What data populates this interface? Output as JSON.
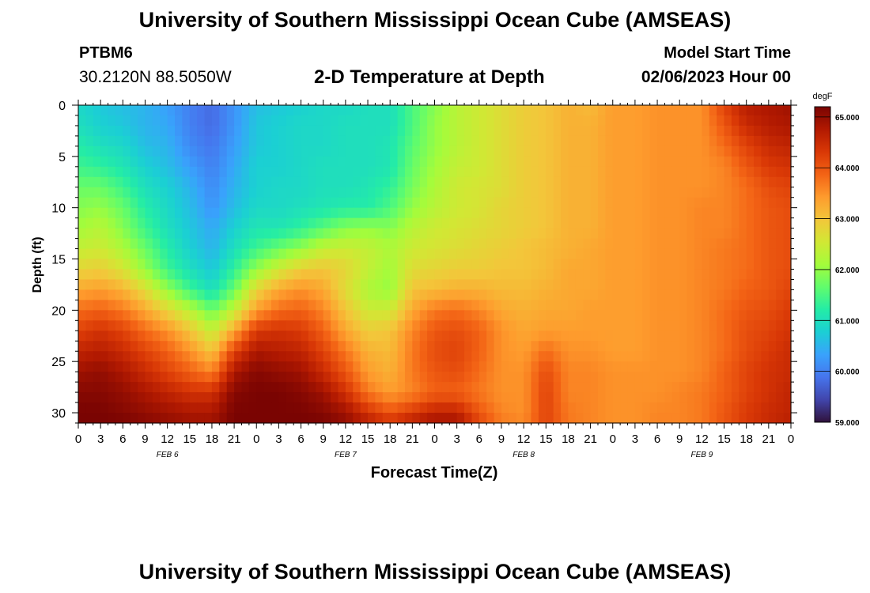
{
  "header": {
    "title": "University of Southern Mississippi Ocean Cube (AMSEAS)",
    "station_id": "PTBM6",
    "station_location": "30.2120N  88.5050W",
    "plot_title": "2-D Temperature at Depth",
    "model_start_label": "Model Start Time",
    "model_start_value": "02/06/2023 Hour 00"
  },
  "footer": {
    "title": "University of Southern Mississippi Ocean Cube (AMSEAS)"
  },
  "chart_data": {
    "type": "heatmap",
    "title": "2-D Temperature at Depth",
    "xlabel": "Forecast Time(Z)",
    "ylabel": "Depth (ft)",
    "x_hours": [
      0,
      96
    ],
    "xlim": [
      0,
      96
    ],
    "ylim": [
      0,
      31
    ],
    "x_tick_labels": [
      "0",
      "3",
      "6",
      "9",
      "12",
      "15",
      "18",
      "21",
      "0",
      "3",
      "6",
      "9",
      "12",
      "15",
      "18",
      "21",
      "0",
      "3",
      "6",
      "9",
      "12",
      "15",
      "18",
      "21",
      "0",
      "3",
      "6",
      "9",
      "12",
      "15",
      "18",
      "21",
      "0"
    ],
    "y_ticks": [
      0,
      5,
      10,
      15,
      20,
      25,
      30
    ],
    "day_labels": [
      {
        "label": "FEB 6",
        "hour": 12
      },
      {
        "label": "FEB 7",
        "hour": 36
      },
      {
        "label": "FEB 8",
        "hour": 60
      },
      {
        "label": "FEB 9",
        "hour": 84
      }
    ],
    "colorbar": {
      "unit": "degF",
      "range": [
        59.0,
        65.2
      ],
      "ticks": [
        "65.000",
        "64.000",
        "63.000",
        "62.000",
        "61.000",
        "60.000",
        "59.000"
      ],
      "tick_values": [
        65,
        64,
        63,
        62,
        61,
        60,
        59
      ],
      "colors": [
        "#30123b",
        "#4145ab",
        "#4675ed",
        "#39a2fc",
        "#1bcfd4",
        "#24eca6",
        "#61fc6c",
        "#a4fc3b",
        "#d1e834",
        "#f3c63a",
        "#fe9b2d",
        "#f36315",
        "#d93806",
        "#b11901",
        "#7a0402"
      ]
    },
    "depths_ft": [
      0,
      2,
      4,
      6,
      8,
      10,
      12,
      14,
      16,
      18,
      20,
      22,
      24,
      26,
      28,
      30,
      31
    ],
    "hours": [
      0,
      3,
      6,
      9,
      12,
      15,
      18,
      21,
      24,
      27,
      30,
      33,
      36,
      39,
      42,
      45,
      48,
      51,
      54,
      57,
      60,
      63,
      66,
      69,
      72,
      75,
      78,
      81,
      84,
      87,
      90,
      93,
      96
    ],
    "temperature_degF": [
      [
        60.9,
        60.7,
        60.6,
        60.5,
        60.3,
        60.0,
        59.8,
        60.2,
        60.6,
        60.7,
        60.8,
        60.9,
        60.9,
        61.0,
        61.0,
        61.5,
        61.9,
        62.3,
        62.5,
        62.7,
        62.9,
        63.0,
        63.2,
        63.1,
        63.4,
        63.4,
        63.5,
        63.5,
        63.5,
        64.2,
        64.7,
        64.8,
        64.9
      ],
      [
        61.0,
        60.8,
        60.7,
        60.5,
        60.4,
        60.0,
        59.8,
        60.2,
        60.7,
        60.8,
        60.9,
        60.9,
        61.0,
        61.0,
        61.0,
        61.5,
        62.0,
        62.3,
        62.5,
        62.7,
        62.9,
        63.0,
        63.2,
        63.2,
        63.4,
        63.4,
        63.5,
        63.5,
        63.5,
        64.0,
        64.5,
        64.7,
        64.8
      ],
      [
        61.2,
        61.0,
        60.9,
        60.6,
        60.5,
        60.1,
        59.9,
        60.3,
        60.7,
        60.8,
        60.9,
        60.9,
        61.0,
        61.0,
        61.1,
        61.6,
        62.0,
        62.3,
        62.5,
        62.7,
        62.9,
        63.0,
        63.2,
        63.2,
        63.4,
        63.4,
        63.5,
        63.5,
        63.5,
        63.8,
        64.2,
        64.5,
        64.6
      ],
      [
        61.4,
        61.3,
        61.1,
        60.8,
        60.6,
        60.3,
        60.0,
        60.4,
        60.8,
        60.8,
        60.9,
        61.0,
        61.0,
        61.0,
        61.1,
        61.7,
        62.1,
        62.4,
        62.5,
        62.7,
        62.9,
        63.0,
        63.2,
        63.2,
        63.4,
        63.4,
        63.5,
        63.5,
        63.5,
        63.6,
        64.0,
        64.3,
        64.4
      ],
      [
        61.7,
        61.7,
        61.4,
        61.0,
        60.8,
        60.5,
        60.1,
        60.5,
        60.8,
        60.9,
        60.9,
        61.0,
        61.0,
        61.1,
        61.3,
        61.8,
        62.2,
        62.5,
        62.6,
        62.7,
        62.9,
        63.0,
        63.2,
        63.2,
        63.4,
        63.4,
        63.5,
        63.5,
        63.5,
        63.6,
        63.8,
        64.1,
        64.2
      ],
      [
        61.9,
        62.0,
        61.7,
        61.2,
        60.9,
        60.6,
        60.2,
        60.6,
        60.9,
        60.9,
        61.0,
        61.1,
        61.2,
        61.2,
        61.5,
        62.0,
        62.3,
        62.5,
        62.6,
        62.8,
        62.9,
        63.0,
        63.2,
        63.2,
        63.4,
        63.4,
        63.5,
        63.5,
        63.6,
        63.6,
        63.8,
        64.0,
        64.1
      ],
      [
        62.1,
        62.3,
        61.9,
        61.4,
        61.0,
        60.7,
        60.4,
        60.8,
        61.1,
        61.1,
        61.3,
        61.6,
        61.9,
        62.0,
        61.9,
        62.3,
        62.5,
        62.6,
        62.7,
        62.8,
        62.9,
        63.0,
        63.2,
        63.2,
        63.4,
        63.4,
        63.5,
        63.5,
        63.6,
        63.6,
        63.8,
        64.0,
        64.1
      ],
      [
        62.4,
        62.5,
        62.2,
        61.7,
        61.2,
        60.8,
        60.5,
        61.0,
        61.4,
        61.7,
        62.0,
        62.4,
        62.5,
        62.4,
        62.2,
        62.5,
        62.6,
        62.7,
        62.8,
        62.9,
        63.0,
        63.1,
        63.2,
        63.3,
        63.4,
        63.4,
        63.5,
        63.5,
        63.6,
        63.7,
        63.8,
        64.0,
        64.1
      ],
      [
        62.8,
        62.9,
        62.6,
        62.0,
        61.4,
        61.0,
        60.7,
        61.3,
        62.0,
        62.5,
        62.9,
        63.0,
        62.8,
        62.4,
        62.1,
        62.7,
        62.8,
        62.9,
        62.9,
        63.0,
        63.0,
        63.1,
        63.3,
        63.3,
        63.4,
        63.4,
        63.5,
        63.5,
        63.6,
        63.7,
        63.8,
        64.0,
        64.1
      ],
      [
        63.3,
        63.4,
        63.2,
        62.7,
        62.0,
        61.4,
        61.0,
        61.7,
        62.8,
        63.3,
        63.5,
        63.3,
        62.7,
        62.2,
        62.0,
        63.0,
        63.1,
        63.2,
        63.2,
        63.1,
        63.1,
        63.2,
        63.3,
        63.3,
        63.4,
        63.4,
        63.5,
        63.5,
        63.6,
        63.7,
        63.9,
        64.0,
        64.2
      ],
      [
        63.8,
        63.9,
        63.7,
        63.3,
        62.8,
        62.3,
        61.7,
        62.4,
        63.4,
        63.8,
        63.9,
        63.6,
        63.0,
        62.5,
        62.5,
        63.3,
        63.7,
        63.8,
        63.6,
        63.3,
        63.2,
        63.3,
        63.3,
        63.4,
        63.4,
        63.4,
        63.5,
        63.5,
        63.6,
        63.8,
        64.0,
        64.1,
        64.3
      ],
      [
        64.2,
        64.4,
        64.2,
        63.8,
        63.5,
        63.0,
        62.4,
        63.3,
        64.3,
        64.4,
        64.3,
        63.9,
        63.3,
        62.9,
        63.0,
        63.6,
        64.0,
        64.1,
        63.9,
        63.5,
        63.3,
        63.4,
        63.4,
        63.4,
        63.4,
        63.4,
        63.5,
        63.5,
        63.6,
        63.8,
        64.1,
        64.2,
        64.4
      ],
      [
        64.6,
        64.7,
        64.5,
        64.2,
        63.9,
        63.5,
        63.0,
        64.2,
        64.8,
        64.7,
        64.6,
        64.2,
        63.7,
        63.2,
        63.1,
        63.7,
        64.1,
        64.2,
        63.9,
        63.5,
        63.4,
        63.8,
        63.5,
        63.5,
        63.4,
        63.4,
        63.5,
        63.5,
        63.6,
        63.8,
        64.1,
        64.3,
        64.5
      ],
      [
        64.9,
        65.0,
        64.8,
        64.5,
        64.2,
        63.9,
        63.6,
        64.8,
        65.1,
        65.0,
        64.9,
        64.5,
        64.0,
        63.4,
        63.2,
        63.7,
        64.0,
        64.1,
        63.8,
        63.5,
        63.5,
        64.1,
        63.6,
        63.6,
        63.5,
        63.5,
        63.5,
        63.5,
        63.6,
        63.9,
        64.2,
        64.4,
        64.5
      ],
      [
        65.1,
        65.1,
        65.0,
        64.8,
        64.6,
        64.4,
        64.4,
        65.1,
        65.2,
        65.2,
        65.1,
        64.9,
        64.4,
        63.7,
        63.4,
        63.6,
        63.9,
        63.9,
        63.7,
        63.5,
        63.5,
        64.2,
        63.6,
        63.6,
        63.5,
        63.5,
        63.5,
        63.6,
        63.7,
        63.9,
        64.2,
        64.4,
        64.6
      ],
      [
        65.2,
        65.2,
        65.1,
        65.0,
        64.9,
        64.8,
        64.8,
        65.2,
        65.2,
        65.2,
        65.2,
        65.1,
        64.9,
        64.4,
        64.0,
        64.3,
        64.6,
        64.6,
        64.0,
        63.6,
        63.5,
        64.2,
        63.7,
        63.6,
        63.5,
        63.5,
        63.6,
        63.6,
        63.7,
        64.0,
        64.3,
        64.5,
        64.6
      ],
      [
        65.2,
        65.2,
        65.2,
        65.1,
        65.0,
        64.9,
        64.9,
        65.2,
        65.2,
        65.2,
        65.2,
        65.2,
        65.0,
        64.7,
        64.4,
        64.7,
        64.9,
        64.9,
        64.2,
        63.7,
        63.6,
        64.2,
        63.7,
        63.6,
        63.5,
        63.5,
        63.6,
        63.6,
        63.7,
        64.0,
        64.3,
        64.5,
        64.7
      ]
    ]
  }
}
